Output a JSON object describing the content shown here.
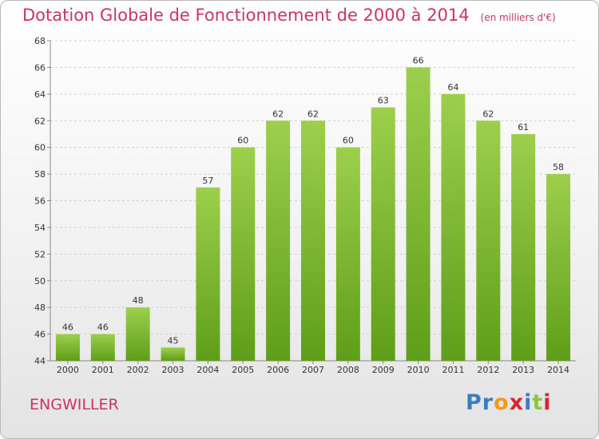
{
  "header": {
    "title": "Dotation Globale de Fonctionnement de 2000 à 2014",
    "unit": "(en milliers d'€)"
  },
  "footer": {
    "commune": "ENGWILLER",
    "logo_text": "Proxiti"
  },
  "colors": {
    "title": "#cc3366",
    "bar_top": "#9ccf4c",
    "bar_bottom": "#5f9e1a",
    "logo_letters": [
      "#3a7dc1",
      "#3a7dc1",
      "#f29a1f",
      "#d9262e",
      "#3a7dc1",
      "#8cc63f",
      "#d9262e"
    ]
  },
  "chart_data": {
    "type": "bar",
    "categories": [
      "2000",
      "2001",
      "2002",
      "2003",
      "2004",
      "2005",
      "2006",
      "2007",
      "2008",
      "2009",
      "2010",
      "2011",
      "2012",
      "2013",
      "2014"
    ],
    "values": [
      46,
      46,
      48,
      45,
      57,
      60,
      62,
      62,
      60,
      63,
      66,
      64,
      62,
      61,
      58
    ],
    "ylim": [
      44,
      68
    ],
    "yticks": [
      44,
      46,
      48,
      50,
      52,
      54,
      56,
      58,
      60,
      62,
      64,
      66,
      68
    ],
    "grid": true,
    "data_labels": true,
    "title": "Dotation Globale de Fonctionnement de 2000 à 2014",
    "xlabel": "",
    "ylabel": ""
  }
}
